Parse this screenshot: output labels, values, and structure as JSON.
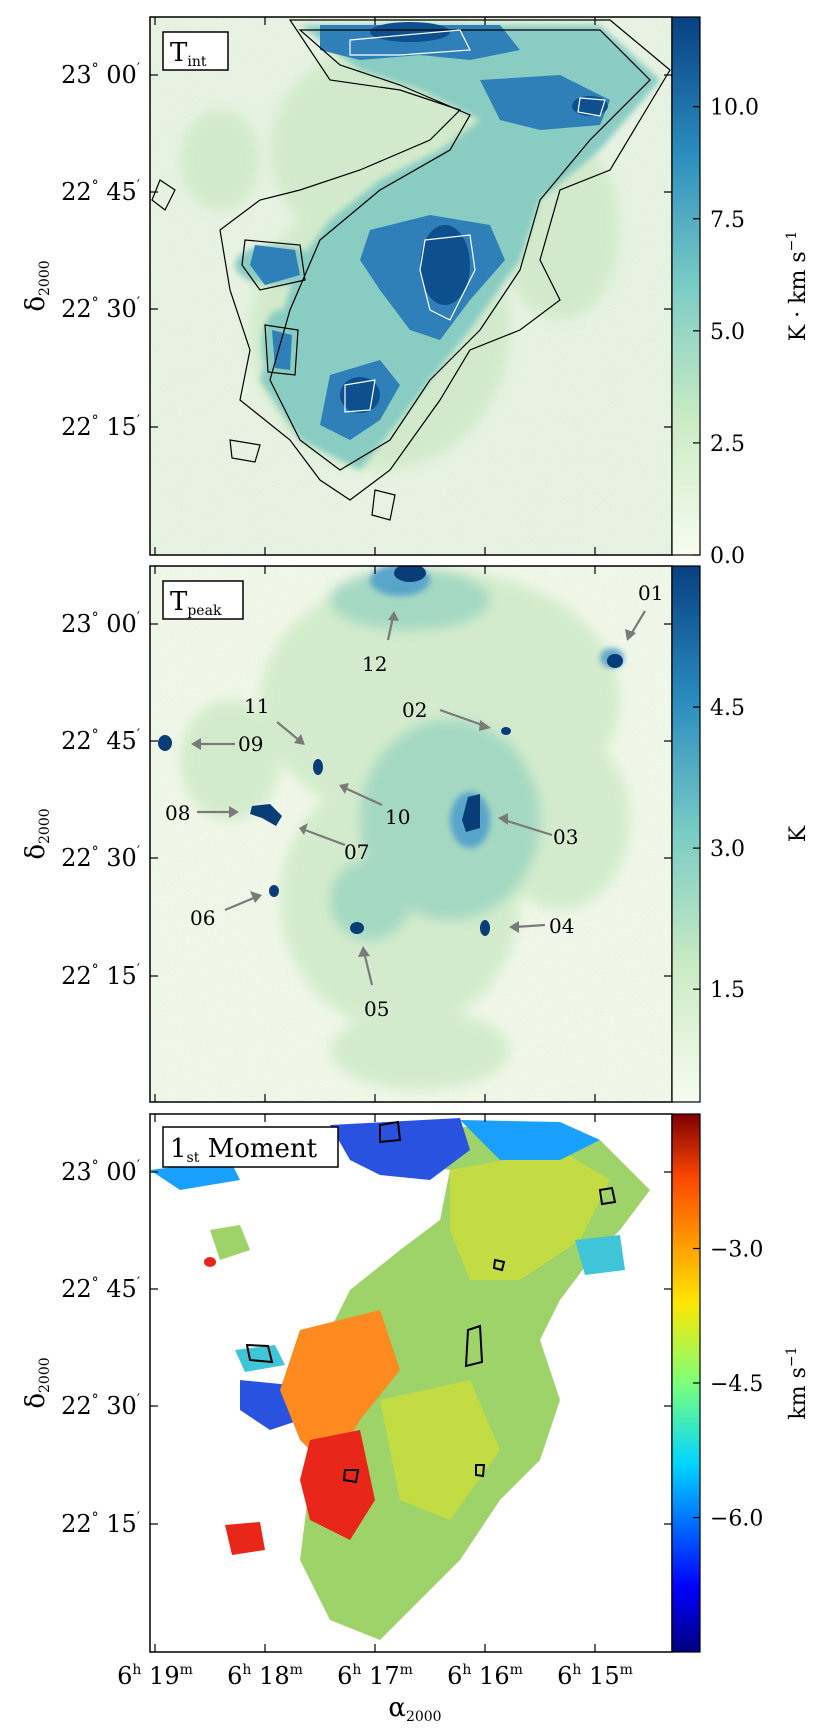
{
  "figure": {
    "xlabel": "α",
    "xlabel_sub": "2000",
    "ylabel": "δ",
    "ylabel_sub": "2000",
    "x_ticks": [
      {
        "h": "6",
        "m": "19"
      },
      {
        "h": "6",
        "m": "18"
      },
      {
        "h": "6",
        "m": "17"
      },
      {
        "h": "6",
        "m": "16"
      },
      {
        "h": "6",
        "m": "15"
      }
    ],
    "y_ticks": [
      {
        "deg": "23",
        "min": "00"
      },
      {
        "deg": "22",
        "min": "45"
      },
      {
        "deg": "22",
        "min": "30"
      },
      {
        "deg": "22",
        "min": "15"
      }
    ]
  },
  "chart_data": [
    {
      "type": "heatmap",
      "panel_label": "T",
      "panel_label_sub": "int",
      "colorbar_label": "K · km s",
      "colorbar_label_sup": "−1",
      "colorbar_ticks": [
        "0.0",
        "2.5",
        "5.0",
        "7.5",
        "10.0"
      ],
      "colorbar_range": [
        0,
        12
      ],
      "colormap": [
        "#f7fcf0",
        "#ccebc5",
        "#7bccc4",
        "#2b8cbe",
        "#084081"
      ],
      "contours": true
    },
    {
      "type": "heatmap",
      "panel_label": "T",
      "panel_label_sub": "peak",
      "colorbar_label": "K",
      "colorbar_ticks": [
        "1.5",
        "3.0",
        "4.5"
      ],
      "colorbar_range": [
        0.3,
        6
      ],
      "colormap": [
        "#f7fcf0",
        "#ccebc5",
        "#7bccc4",
        "#2b8cbe",
        "#084081"
      ],
      "annotations": [
        "01",
        "02",
        "03",
        "04",
        "05",
        "06",
        "07",
        "08",
        "09",
        "10",
        "11",
        "12"
      ]
    },
    {
      "type": "heatmap",
      "panel_label": "1",
      "panel_label_sub": "st",
      "panel_label_rest": " Moment",
      "colorbar_label": "km s",
      "colorbar_label_sup": "−1",
      "colorbar_ticks": [
        "−3.0",
        "−4.5",
        "−6.0"
      ],
      "colorbar_range": [
        -7.5,
        -1.5
      ],
      "colormap": [
        "#00007f",
        "#0000ff",
        "#00d5ff",
        "#7dff7a",
        "#ffe600",
        "#ff4800",
        "#7f0000"
      ],
      "contours": true
    }
  ]
}
